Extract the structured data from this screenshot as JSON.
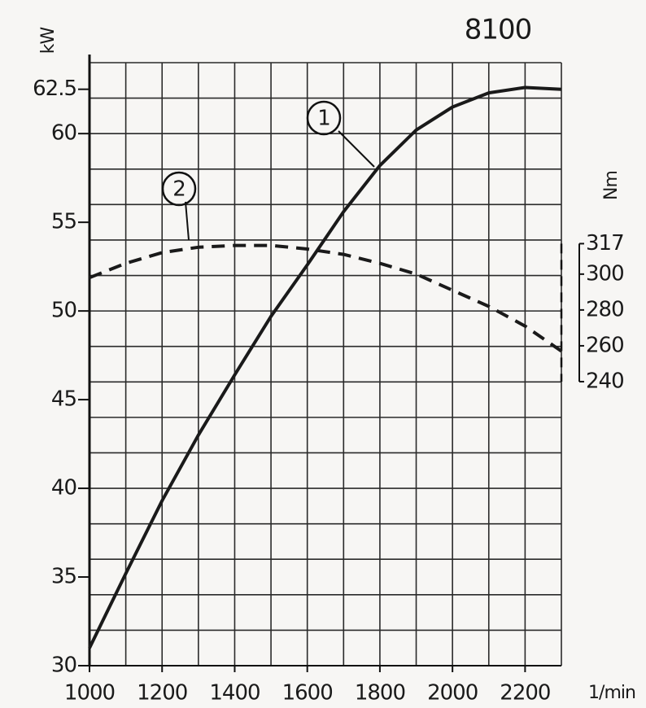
{
  "chart_data": {
    "type": "line",
    "title": "8100",
    "y_label": "kW",
    "y2_label": "Nm",
    "x_label": "1/min",
    "x": [
      1000,
      1100,
      1200,
      1300,
      1400,
      1500,
      1600,
      1700,
      1800,
      1900,
      2000,
      2100,
      2200,
      2300
    ],
    "series": [
      {
        "name": "1",
        "color": "#1a1a1a",
        "dashed": false,
        "values": [
          31,
          35.2,
          39.3,
          43,
          46.4,
          49.7,
          52.6,
          55.6,
          58.2,
          60.2,
          61.5,
          62.3,
          62.6,
          62.5
        ]
      },
      {
        "name": "2",
        "color": "#1a1a1a",
        "dashed": true,
        "axis": "y2",
        "values": [
          298,
          306,
          312,
          315,
          316,
          316,
          314,
          311,
          306,
          300,
          291,
          282,
          271,
          257
        ]
      }
    ],
    "xlim": [
      1000,
      2300
    ],
    "xticks": [
      1000,
      1200,
      1400,
      1600,
      1800,
      2000,
      2200
    ],
    "ylim": [
      30,
      64
    ],
    "yticks": [
      30,
      35,
      40,
      45,
      50,
      55,
      60,
      62.5
    ],
    "y2lim": [
      81.5,
      418
    ],
    "y2ticks": [
      240,
      260,
      280,
      300,
      317
    ],
    "grid": true,
    "grid_x": [
      1000,
      1100,
      1200,
      1300,
      1400,
      1500,
      1600,
      1700,
      1800,
      1900,
      2000,
      2100,
      2200,
      2300
    ],
    "grid_y": [
      30,
      32,
      34,
      36,
      38,
      40,
      42,
      44,
      46,
      48,
      50,
      52,
      54,
      56,
      58,
      60,
      62,
      64
    ]
  }
}
